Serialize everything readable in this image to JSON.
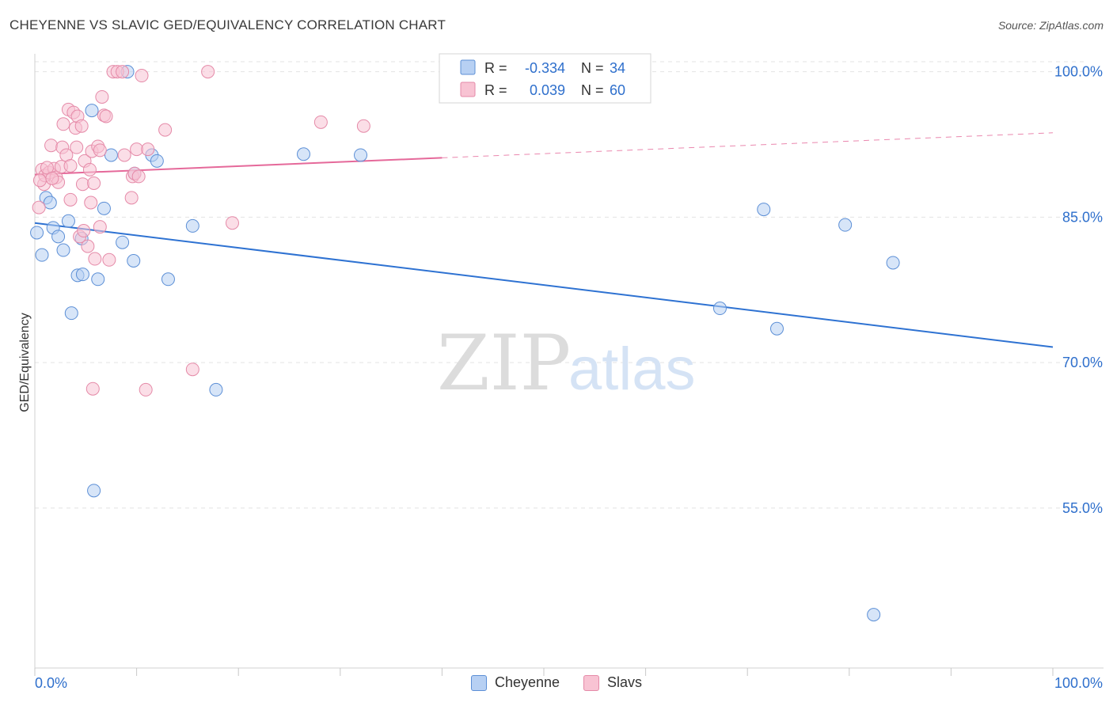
{
  "header": {
    "title": "CHEYENNE VS SLAVIC GED/EQUIVALENCY CORRELATION CHART",
    "source": "Source: ZipAtlas.com"
  },
  "watermark": {
    "part1": "ZIP",
    "part2": "atlas"
  },
  "colors": {
    "cheyenne_fill": "#b7d0f3",
    "cheyenne_stroke": "#5c8fd6",
    "cheyenne_line": "#2e72d2",
    "slavs_fill": "#f8c3d3",
    "slavs_stroke": "#e58aa8",
    "slavs_line": "#e5699a",
    "value_text": "#2e6fcc",
    "grid": "#e3e3e3"
  },
  "chart_data": {
    "type": "scatter",
    "title": "CHEYENNE VS SLAVIC GED/EQUIVALENCY CORRELATION CHART",
    "xlabel": "",
    "ylabel": "GED/Equivalency",
    "xlim": [
      0,
      100
    ],
    "ylim": [
      38.5,
      102.5
    ],
    "x_tick_labels": [
      "0.0%",
      "100.0%"
    ],
    "y_ticks": [
      {
        "value": 100,
        "label": "100.0%"
      },
      {
        "value": 85,
        "label": "85.0%"
      },
      {
        "value": 70,
        "label": "70.0%"
      },
      {
        "value": 55,
        "label": "55.0%"
      }
    ],
    "grid": true,
    "legend": {
      "placement": "top-center",
      "entries": [
        {
          "r_label": "R =",
          "r_value": "-0.334",
          "n_label": "N =",
          "n_value": "34"
        },
        {
          "r_label": "R =",
          "r_value": "0.039",
          "n_label": "N =",
          "n_value": "60"
        }
      ]
    },
    "series": [
      {
        "name": "Cheyenne",
        "trend": {
          "x0": 0,
          "y0": 84.4,
          "x1": 100,
          "y1": 71.6,
          "solid_until": 100
        },
        "points": [
          [
            0.2,
            83.4
          ],
          [
            0.7,
            81.1
          ],
          [
            1.1,
            87.0
          ],
          [
            1.5,
            86.5
          ],
          [
            1.8,
            83.9
          ],
          [
            2.3,
            83.0
          ],
          [
            2.8,
            81.6
          ],
          [
            3.3,
            84.6
          ],
          [
            3.6,
            75.1
          ],
          [
            4.2,
            79.0
          ],
          [
            4.7,
            79.1
          ],
          [
            4.6,
            82.8
          ],
          [
            5.6,
            96.0
          ],
          [
            6.2,
            78.6
          ],
          [
            6.8,
            85.9
          ],
          [
            7.5,
            91.4
          ],
          [
            8.6,
            82.4
          ],
          [
            9.1,
            100.0
          ],
          [
            9.7,
            80.5
          ],
          [
            9.8,
            89.5
          ],
          [
            11.5,
            91.4
          ],
          [
            12.0,
            90.8
          ],
          [
            13.1,
            78.6
          ],
          [
            15.5,
            84.1
          ],
          [
            17.8,
            67.2
          ],
          [
            26.4,
            91.5
          ],
          [
            32.0,
            91.4
          ],
          [
            5.8,
            56.8
          ],
          [
            67.3,
            75.6
          ],
          [
            71.6,
            85.8
          ],
          [
            72.9,
            73.5
          ],
          [
            79.6,
            84.2
          ],
          [
            82.4,
            44.0
          ],
          [
            84.3,
            80.3
          ]
        ]
      },
      {
        "name": "Slavs",
        "trend": {
          "x0": 0,
          "y0": 89.4,
          "x1": 100,
          "y1": 93.7,
          "solid_until": 40
        },
        "points": [
          [
            0.4,
            86.0
          ],
          [
            0.7,
            89.9
          ],
          [
            0.9,
            88.4
          ],
          [
            1.0,
            89.3
          ],
          [
            1.4,
            89.6
          ],
          [
            1.6,
            92.4
          ],
          [
            1.9,
            90.0
          ],
          [
            2.1,
            89.1
          ],
          [
            2.3,
            88.6
          ],
          [
            2.6,
            90.2
          ],
          [
            2.7,
            92.2
          ],
          [
            2.8,
            94.6
          ],
          [
            3.1,
            91.4
          ],
          [
            3.3,
            96.1
          ],
          [
            3.5,
            90.3
          ],
          [
            3.5,
            86.8
          ],
          [
            3.8,
            95.8
          ],
          [
            4.0,
            94.2
          ],
          [
            4.1,
            92.2
          ],
          [
            4.2,
            95.4
          ],
          [
            4.4,
            83.0
          ],
          [
            4.6,
            94.4
          ],
          [
            4.7,
            88.4
          ],
          [
            4.8,
            83.6
          ],
          [
            4.9,
            90.8
          ],
          [
            5.2,
            82.0
          ],
          [
            5.4,
            89.9
          ],
          [
            5.5,
            86.5
          ],
          [
            5.6,
            91.8
          ],
          [
            5.8,
            88.5
          ],
          [
            5.7,
            67.3
          ],
          [
            5.9,
            80.7
          ],
          [
            6.2,
            92.3
          ],
          [
            6.4,
            91.9
          ],
          [
            6.4,
            84.0
          ],
          [
            6.6,
            97.4
          ],
          [
            6.8,
            95.5
          ],
          [
            7.0,
            95.4
          ],
          [
            7.3,
            80.6
          ],
          [
            7.7,
            100.0
          ],
          [
            8.1,
            100.0
          ],
          [
            8.6,
            100.0
          ],
          [
            8.8,
            91.4
          ],
          [
            9.5,
            87.0
          ],
          [
            9.6,
            89.2
          ],
          [
            9.8,
            89.5
          ],
          [
            10.0,
            92.0
          ],
          [
            10.2,
            89.2
          ],
          [
            10.5,
            99.6
          ],
          [
            10.9,
            67.2
          ],
          [
            11.1,
            92.0
          ],
          [
            12.8,
            94.0
          ],
          [
            15.5,
            69.3
          ],
          [
            17.0,
            100.0
          ],
          [
            19.4,
            84.4
          ],
          [
            28.1,
            94.8
          ],
          [
            32.3,
            94.4
          ],
          [
            0.5,
            88.8
          ],
          [
            1.2,
            90.1
          ],
          [
            1.7,
            89.0
          ]
        ]
      }
    ]
  }
}
